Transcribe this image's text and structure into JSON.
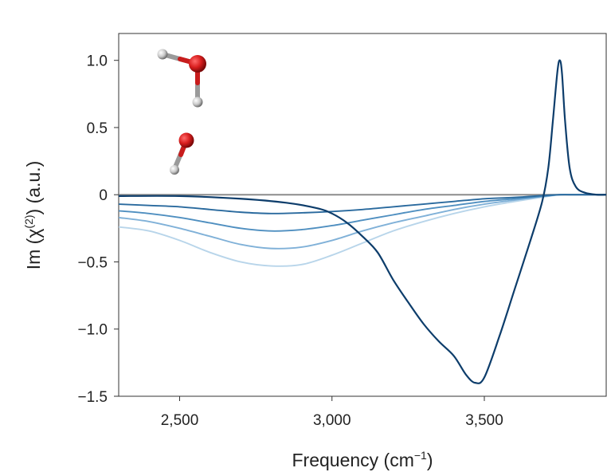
{
  "chart_data": {
    "type": "line",
    "xlabel": {
      "main": "Frequency (cm",
      "superscript": "−1",
      "close": ")"
    },
    "ylabel": {
      "main": "Im (χ",
      "superscript": "(2)",
      "close": ") (a.u.)"
    },
    "xlim": [
      2300,
      3900
    ],
    "ylim": [
      -1.5,
      1.2
    ],
    "x_ticks": [
      {
        "value": 2500,
        "label": "2,500"
      },
      {
        "value": 3000,
        "label": "3,000"
      },
      {
        "value": 3500,
        "label": "3,500"
      }
    ],
    "y_ticks": [
      {
        "value": 1.0,
        "label": "1.0"
      },
      {
        "value": 0.5,
        "label": "0.5"
      },
      {
        "value": 0,
        "label": "0"
      },
      {
        "value": -0.5,
        "label": "−0.5"
      },
      {
        "value": -1.0,
        "label": "−1.0"
      },
      {
        "value": -1.5,
        "label": "−1.5"
      }
    ],
    "grid": false,
    "legend": "none",
    "zero_line": {
      "y": 0,
      "color": "#8c8c8c"
    },
    "series": [
      {
        "color": "#0d3d6b",
        "x": [
          2300,
          2500,
          2700,
          2850,
          2950,
          3000,
          3050,
          3100,
          3150,
          3200,
          3250,
          3300,
          3350,
          3400,
          3440,
          3470,
          3500,
          3550,
          3600,
          3650,
          3690,
          3710,
          3725,
          3740,
          3748,
          3755,
          3765,
          3780,
          3800,
          3830,
          3870,
          3900
        ],
        "y": [
          -0.01,
          -0.01,
          -0.03,
          -0.06,
          -0.1,
          -0.14,
          -0.21,
          -0.31,
          -0.43,
          -0.63,
          -0.8,
          -0.96,
          -1.09,
          -1.2,
          -1.34,
          -1.4,
          -1.36,
          -1.05,
          -0.7,
          -0.35,
          -0.05,
          0.2,
          0.55,
          0.92,
          1.0,
          0.9,
          0.55,
          0.2,
          0.06,
          0.015,
          0.0,
          0.0
        ]
      },
      {
        "color": "#2a6a9e",
        "x": [
          2300,
          2400,
          2500,
          2600,
          2700,
          2800,
          2900,
          3000,
          3100,
          3200,
          3300,
          3400,
          3500,
          3600,
          3700,
          3750,
          3800,
          3900
        ],
        "y": [
          -0.07,
          -0.08,
          -0.09,
          -0.11,
          -0.13,
          -0.14,
          -0.135,
          -0.125,
          -0.11,
          -0.09,
          -0.07,
          -0.05,
          -0.03,
          -0.02,
          -0.005,
          0.0,
          0.0,
          0.0
        ]
      },
      {
        "color": "#4f8fc0",
        "x": [
          2300,
          2400,
          2500,
          2600,
          2700,
          2800,
          2900,
          3000,
          3100,
          3200,
          3300,
          3400,
          3500,
          3600,
          3700,
          3750,
          3800,
          3900
        ],
        "y": [
          -0.12,
          -0.14,
          -0.17,
          -0.21,
          -0.25,
          -0.27,
          -0.26,
          -0.23,
          -0.19,
          -0.15,
          -0.11,
          -0.08,
          -0.05,
          -0.03,
          -0.01,
          0.0,
          0.0,
          0.0
        ]
      },
      {
        "color": "#80b1d8",
        "x": [
          2300,
          2400,
          2500,
          2600,
          2700,
          2800,
          2900,
          3000,
          3100,
          3200,
          3300,
          3400,
          3500,
          3600,
          3700,
          3750,
          3800,
          3900
        ],
        "y": [
          -0.17,
          -0.2,
          -0.25,
          -0.31,
          -0.37,
          -0.4,
          -0.39,
          -0.34,
          -0.27,
          -0.21,
          -0.16,
          -0.11,
          -0.07,
          -0.04,
          -0.01,
          0.0,
          0.0,
          0.0
        ]
      },
      {
        "color": "#b8d5ea",
        "x": [
          2300,
          2400,
          2500,
          2600,
          2700,
          2800,
          2900,
          3000,
          3100,
          3200,
          3300,
          3400,
          3500,
          3600,
          3700,
          3750,
          3800,
          3900
        ],
        "y": [
          -0.24,
          -0.27,
          -0.34,
          -0.43,
          -0.5,
          -0.53,
          -0.52,
          -0.45,
          -0.36,
          -0.27,
          -0.2,
          -0.14,
          -0.09,
          -0.05,
          -0.015,
          0.0,
          0.0,
          0.0
        ]
      }
    ]
  },
  "inset_molecules": {
    "description_icons": [
      "water-molecule-icon",
      "hydroxyl-molecule-icon"
    ],
    "oxygen_color": "#d81e1e",
    "hydrogen_color": "#cfcfcf"
  }
}
